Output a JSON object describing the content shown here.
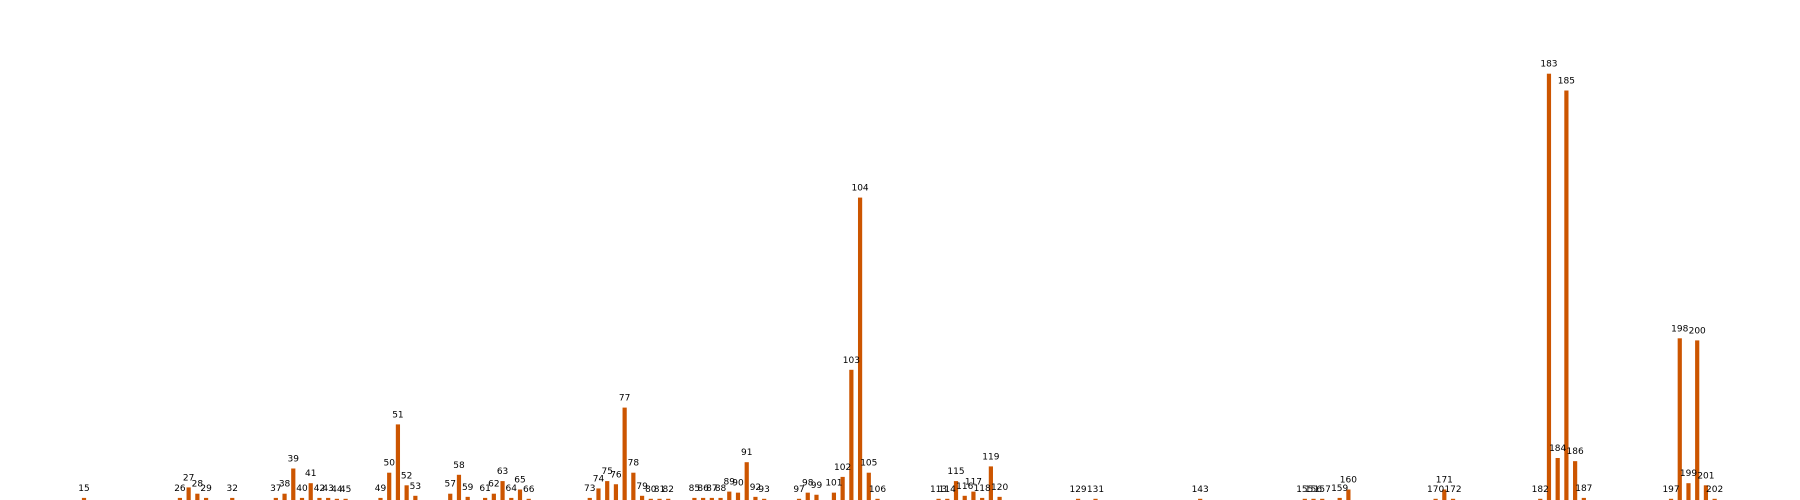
{
  "chart_data": {
    "type": "bar",
    "colors": {
      "bar": "#cc5500",
      "label": "#000000"
    },
    "grid": false,
    "legend": "none",
    "x_axis_visible": false,
    "y_axis_visible": false,
    "ylim": [
      0,
      200
    ],
    "bars": [
      {
        "label": "15",
        "value": 1
      },
      {
        "label": "26",
        "value": 1
      },
      {
        "label": "27",
        "value": 6
      },
      {
        "label": "28",
        "value": 3
      },
      {
        "label": "29",
        "value": 1
      },
      {
        "label": "32",
        "value": 1
      },
      {
        "label": "37",
        "value": 1
      },
      {
        "label": "38",
        "value": 3
      },
      {
        "label": "39",
        "value": 15
      },
      {
        "label": "40",
        "value": 1
      },
      {
        "label": "41",
        "value": 8
      },
      {
        "label": "42",
        "value": 1
      },
      {
        "label": "43",
        "value": 1
      },
      {
        "label": "44",
        "value": 0.3
      },
      {
        "label": "45",
        "value": 0.3
      },
      {
        "label": "49",
        "value": 1
      },
      {
        "label": "50",
        "value": 13
      },
      {
        "label": "51",
        "value": 36
      },
      {
        "label": "52",
        "value": 7
      },
      {
        "label": "53",
        "value": 2
      },
      {
        "label": "57",
        "value": 3
      },
      {
        "label": "58",
        "value": 12
      },
      {
        "label": "59",
        "value": 1.5
      },
      {
        "label": "61",
        "value": 1
      },
      {
        "label": "62",
        "value": 3
      },
      {
        "label": "63",
        "value": 9
      },
      {
        "label": "64",
        "value": 1
      },
      {
        "label": "65",
        "value": 5
      },
      {
        "label": "66",
        "value": 0.3
      },
      {
        "label": "73",
        "value": 1
      },
      {
        "label": "74",
        "value": 5.5
      },
      {
        "label": "75",
        "value": 9
      },
      {
        "label": "76",
        "value": 7.5
      },
      {
        "label": "77",
        "value": 44
      },
      {
        "label": "78",
        "value": 13
      },
      {
        "label": "79",
        "value": 2
      },
      {
        "label": "80",
        "value": 0.3
      },
      {
        "label": "81",
        "value": 0.3
      },
      {
        "label": "82",
        "value": 0.3
      },
      {
        "label": "85",
        "value": 1
      },
      {
        "label": "86",
        "value": 1
      },
      {
        "label": "87",
        "value": 1
      },
      {
        "label": "88",
        "value": 1
      },
      {
        "label": "89",
        "value": 4
      },
      {
        "label": "90",
        "value": 3.5
      },
      {
        "label": "91",
        "value": 18
      },
      {
        "label": "92",
        "value": 1.5
      },
      {
        "label": "93",
        "value": 0.3
      },
      {
        "label": "97",
        "value": 0.3
      },
      {
        "label": "98",
        "value": 3.5
      },
      {
        "label": "99",
        "value": 2.5
      },
      {
        "label": "101",
        "value": 3.5
      },
      {
        "label": "102",
        "value": 11
      },
      {
        "label": "103",
        "value": 62
      },
      {
        "label": "104",
        "value": 144
      },
      {
        "label": "105",
        "value": 13
      },
      {
        "label": "106",
        "value": 0.3
      },
      {
        "label": "113",
        "value": 0.3
      },
      {
        "label": "114",
        "value": 0.3
      },
      {
        "label": "115",
        "value": 9
      },
      {
        "label": "116",
        "value": 2
      },
      {
        "label": "117",
        "value": 4
      },
      {
        "label": "118",
        "value": 1
      },
      {
        "label": "119",
        "value": 16
      },
      {
        "label": "120",
        "value": 1.5
      },
      {
        "label": "129",
        "value": 0.3
      },
      {
        "label": "131",
        "value": 0.3
      },
      {
        "label": "143",
        "value": 0.3
      },
      {
        "label": "155",
        "value": 0.3
      },
      {
        "label": "156",
        "value": 0.3
      },
      {
        "label": "157",
        "value": 0.3
      },
      {
        "label": "159",
        "value": 1
      },
      {
        "label": "160",
        "value": 5
      },
      {
        "label": "170",
        "value": 0.3
      },
      {
        "label": "171",
        "value": 5
      },
      {
        "label": "172",
        "value": 0.3
      },
      {
        "label": "182",
        "value": 0.5
      },
      {
        "label": "183",
        "value": 203
      },
      {
        "label": "184",
        "value": 20
      },
      {
        "label": "185",
        "value": 195
      },
      {
        "label": "186",
        "value": 18.5
      },
      {
        "label": "187",
        "value": 1
      },
      {
        "label": "197",
        "value": 0.3
      },
      {
        "label": "198",
        "value": 77
      },
      {
        "label": "199",
        "value": 8
      },
      {
        "label": "200",
        "value": 76
      },
      {
        "label": "201",
        "value": 7
      },
      {
        "label": "202",
        "value": 0.3
      }
    ]
  }
}
